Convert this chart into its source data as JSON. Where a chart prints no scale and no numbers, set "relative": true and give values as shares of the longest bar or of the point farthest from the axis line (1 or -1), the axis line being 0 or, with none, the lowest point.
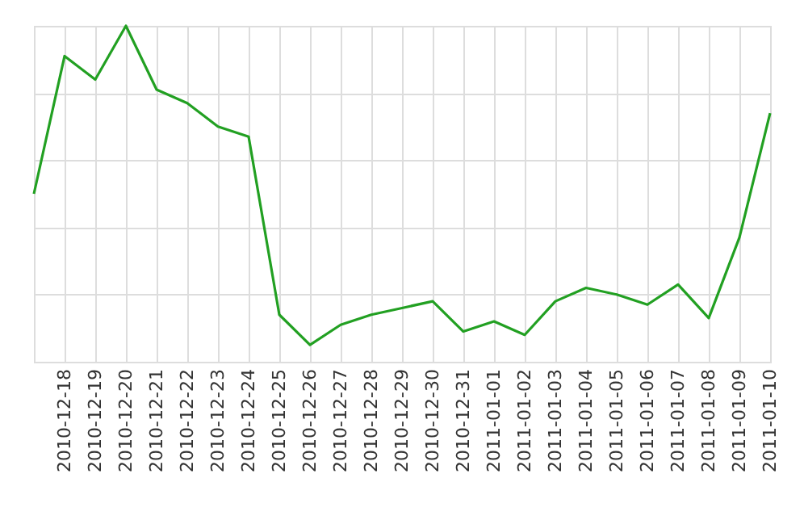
{
  "chart_data": {
    "type": "line",
    "relative": true,
    "grid": true,
    "categories": [
      null,
      "2010-12-18",
      "2010-12-19",
      "2010-12-20",
      "2010-12-21",
      "2010-12-22",
      "2010-12-23",
      "2010-12-24",
      "2010-12-25",
      "2010-12-26",
      "2010-12-27",
      "2010-12-28",
      "2010-12-29",
      "2010-12-30",
      "2010-12-31",
      "2011-01-01",
      "2011-01-02",
      "2011-01-03",
      "2011-01-04",
      "2011-01-05",
      "2011-01-06",
      "2011-01-07",
      "2011-01-08",
      "2011-01-09",
      "2011-01-10"
    ],
    "series": [
      {
        "color": "#22a022",
        "values": [
          0.5,
          0.91,
          0.84,
          1,
          0.81,
          0.77,
          0.7,
          0.67,
          0.14,
          0.05,
          0.11,
          0.14,
          0.16,
          0.18,
          0.09,
          0.12,
          0.08,
          0.18,
          0.22,
          0.2,
          0.17,
          0.23,
          0.13,
          0.37,
          0.74
        ]
      }
    ]
  }
}
